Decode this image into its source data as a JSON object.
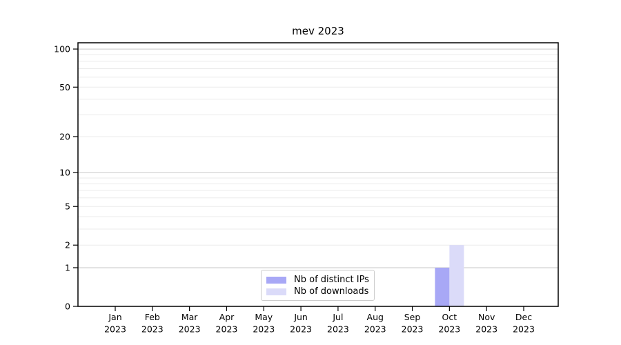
{
  "chart_data": {
    "type": "bar",
    "title": "mev 2023",
    "categories": [
      "Jan",
      "Feb",
      "Mar",
      "Apr",
      "May",
      "Jun",
      "Jul",
      "Aug",
      "Sep",
      "Oct",
      "Nov",
      "Dec"
    ],
    "category_year": "2023",
    "series": [
      {
        "name": "Nb of distinct IPs",
        "color": "#a8a8f6",
        "values": [
          0,
          0,
          0,
          0,
          0,
          0,
          0,
          0,
          0,
          1,
          0,
          0
        ]
      },
      {
        "name": "Nb of downloads",
        "color": "#dbdbf9",
        "values": [
          0,
          0,
          0,
          0,
          0,
          0,
          0,
          0,
          0,
          2,
          0,
          0
        ]
      }
    ],
    "xlabel": "",
    "ylabel": "",
    "y_axis": {
      "scale": "log1p",
      "tick_values": [
        0,
        1,
        2,
        5,
        10,
        20,
        50,
        100
      ],
      "major_grid_values": [
        1,
        10,
        100
      ],
      "minor_grid_values": [
        2,
        3,
        4,
        5,
        6,
        7,
        8,
        9,
        20,
        30,
        40,
        50,
        60,
        70,
        80,
        90
      ],
      "ylim": [
        0,
        112
      ]
    },
    "legend": {
      "position": "lower center"
    },
    "grid": true,
    "colors": {
      "major_grid": "#c7c7c7",
      "minor_grid": "#ebebeb",
      "spine": "#000000",
      "tick_text": "#000000",
      "background": "#ffffff",
      "legend_border": "#cccccc"
    }
  }
}
